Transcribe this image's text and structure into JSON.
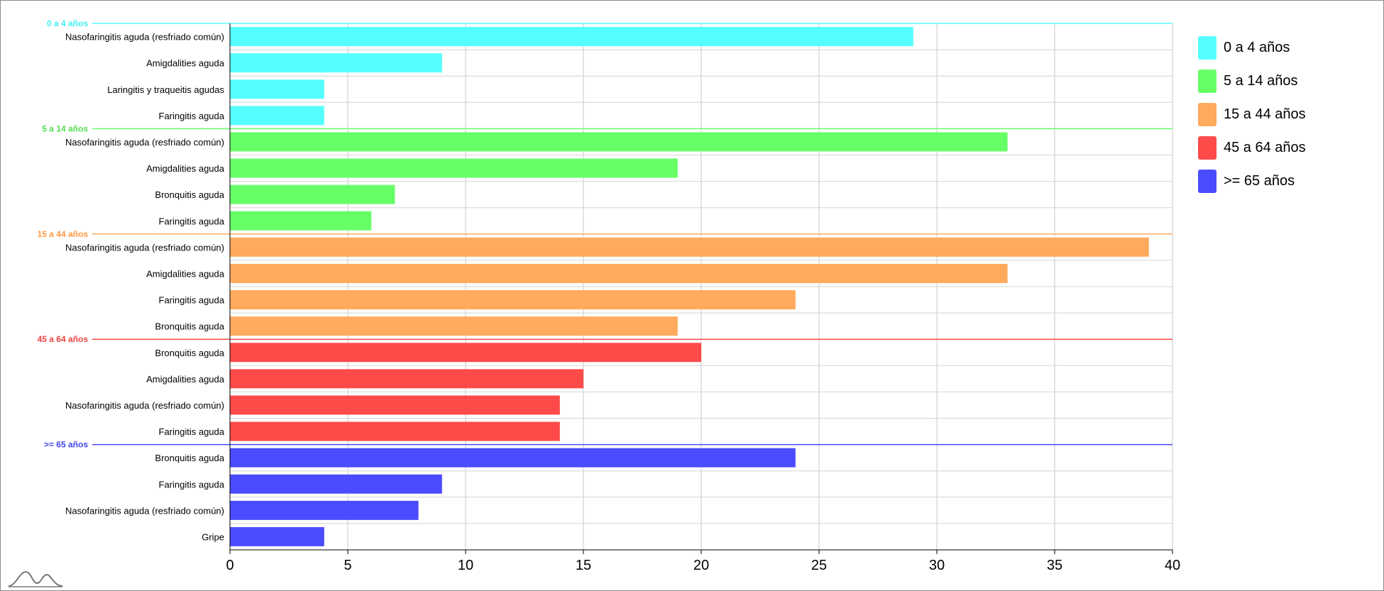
{
  "chart_data": {
    "type": "bar",
    "orientation": "horizontal",
    "xlim": [
      0,
      40
    ],
    "x_ticks": [
      0,
      5,
      10,
      15,
      20,
      25,
      30,
      35,
      40
    ],
    "grid": true,
    "legend_position": "top-right",
    "groups": [
      {
        "name": "0 a 4 años",
        "color": "#55FFFF",
        "label_color": "#44EEEE",
        "categories": [
          "Nasofaringitis aguda (resfriado común)",
          "Amigdalities aguda",
          "Laringitis y traqueitis agudas",
          "Faringitis aguda"
        ],
        "values": [
          29,
          9,
          4,
          4
        ]
      },
      {
        "name": "5 a 14 años",
        "color": "#66FF66",
        "label_color": "#55DD55",
        "categories": [
          "Nasofaringitis aguda (resfriado común)",
          "Amigdalities aguda",
          "Bronquitis aguda",
          "Faringitis aguda"
        ],
        "values": [
          33,
          19,
          7,
          6
        ]
      },
      {
        "name": "15 a 44 años",
        "color": "#FFAA5C",
        "label_color": "#FF9944",
        "categories": [
          "Nasofaringitis aguda (resfriado común)",
          "Amigdalities aguda",
          "Faringitis aguda",
          "Bronquitis aguda"
        ],
        "values": [
          39,
          33,
          24,
          19
        ]
      },
      {
        "name": "45 a 64 años",
        "color": "#FF4A4A",
        "label_color": "#EE4444",
        "categories": [
          "Bronquitis aguda",
          "Amigdalities aguda",
          "Nasofaringitis aguda (resfriado común)",
          "Faringitis aguda"
        ],
        "values": [
          20,
          15,
          14,
          14
        ]
      },
      {
        "name": ">= 65 años",
        "color": "#4B4BFF",
        "label_color": "#4444EE",
        "categories": [
          "Bronquitis aguda",
          "Faringitis aguda",
          "Nasofaringitis aguda (resfriado común)",
          "Gripe"
        ],
        "values": [
          24,
          9,
          8,
          4
        ]
      }
    ]
  },
  "logo": {
    "icon": "mountain-logo-icon"
  }
}
